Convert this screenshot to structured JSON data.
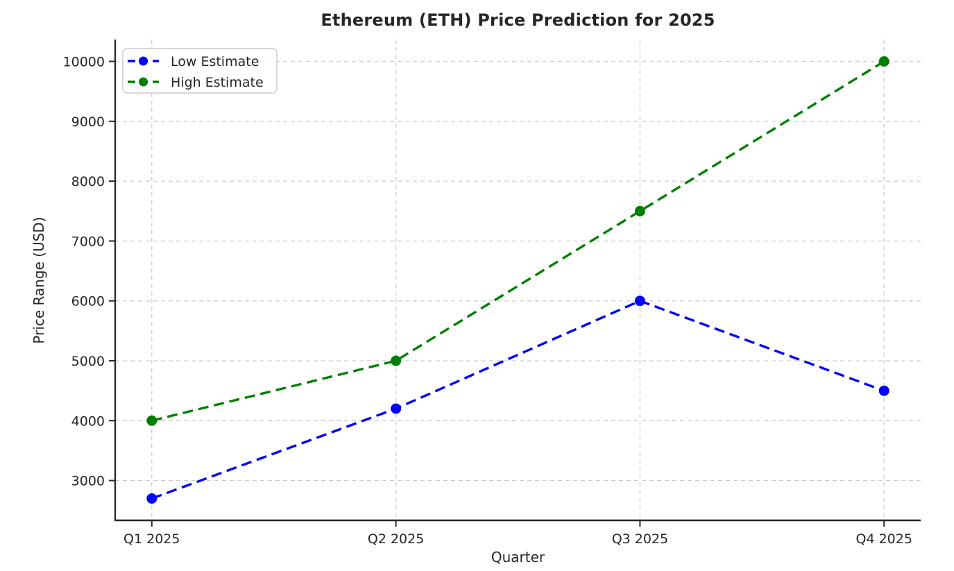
{
  "figure": {
    "background": "#ffffff"
  },
  "chart_data": {
    "type": "line",
    "title": "Ethereum (ETH) Price Prediction for 2025",
    "xlabel": "Quarter",
    "ylabel": "Price Range (USD)",
    "categories": [
      "Q1 2025",
      "Q2 2025",
      "Q3 2025",
      "Q4 2025"
    ],
    "series": [
      {
        "name": "Low Estimate",
        "color": "#0000ff",
        "linestyle": "dashed",
        "marker": "circle",
        "values": [
          2700,
          4200,
          6000,
          4500
        ]
      },
      {
        "name": "High Estimate",
        "color": "#008000",
        "linestyle": "dashed",
        "marker": "circle",
        "values": [
          4000,
          5000,
          7500,
          10000
        ]
      }
    ],
    "yticks": [
      3000,
      4000,
      5000,
      6000,
      7000,
      8000,
      9000,
      10000
    ],
    "ytick_labels": [
      "3000",
      "4000",
      "5000",
      "6000",
      "7000",
      "8000",
      "9000",
      "10000"
    ],
    "ylim": [
      2335,
      10365
    ],
    "xlim": [
      -0.15,
      3.15
    ],
    "grid": true,
    "grid_style": "dashed",
    "legend": {
      "position": "upper-left",
      "entries": [
        "Low Estimate",
        "High Estimate"
      ]
    },
    "styles": {
      "grid_color": "#cccccc",
      "spine_color": "#262626",
      "tick_label_color": "#262626",
      "title_color": "#262626",
      "legend_border_color": "#cccccc",
      "legend_background": "#ffffff"
    }
  }
}
